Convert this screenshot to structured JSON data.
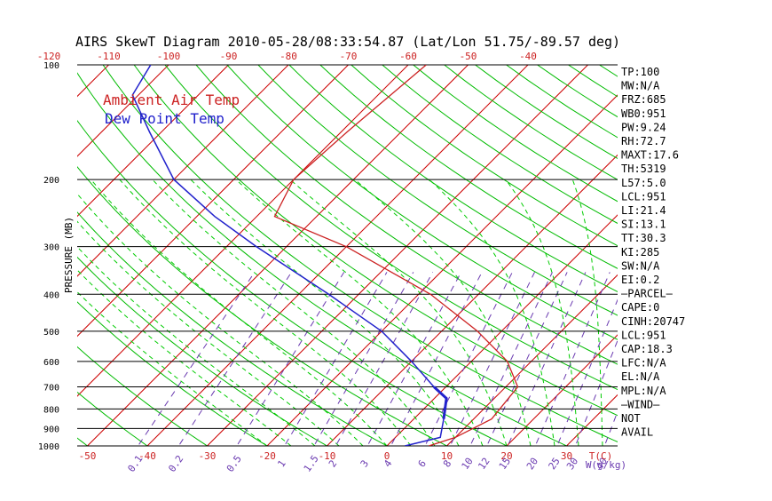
{
  "chart_data": {
    "type": "line",
    "title": "AIRS SkewT Diagram 2010-05-28/08:33:54.87 (Lat/Lon 51.75/-89.57 deg)",
    "ylabel": "PRESSURE (MB)",
    "y_scale": "log",
    "ylim": [
      1000,
      100
    ],
    "xlim_bottom": [
      -50,
      40
    ],
    "pressure_ticks": [
      100,
      200,
      300,
      400,
      500,
      600,
      700,
      800,
      900,
      1000
    ],
    "temp_ticks_top": [
      -120,
      -110,
      -100,
      -90,
      -80,
      -70,
      -60,
      -50,
      -40
    ],
    "temp_ticks_bottom": [
      -50,
      -40,
      -30,
      -20,
      -10,
      0,
      10,
      20,
      30
    ],
    "temp_unit_label": "T(C)",
    "mixing_ratio_ticks": [
      "0.1",
      "0.2",
      "0.5",
      "1",
      "1.5",
      "2",
      "3",
      "4",
      "6",
      "8",
      "10",
      "12",
      "15",
      "20",
      "25",
      "30",
      "40"
    ],
    "mixing_ratio_unit_label": "W(g/kg)",
    "series": [
      {
        "name": "Ambient Air Temp",
        "color": "#cc2222",
        "points": [
          {
            "p": 1000,
            "t": 7
          },
          {
            "p": 950,
            "t": 10
          },
          {
            "p": 850,
            "t": 13
          },
          {
            "p": 700,
            "t": 12
          },
          {
            "p": 600,
            "t": 6
          },
          {
            "p": 500,
            "t": -4
          },
          {
            "p": 400,
            "t": -18
          },
          {
            "p": 300,
            "t": -40
          },
          {
            "p": 250,
            "t": -57
          },
          {
            "p": 200,
            "t": -60
          },
          {
            "p": 150,
            "t": -59
          },
          {
            "p": 100,
            "t": -57
          }
        ]
      },
      {
        "name": "Dew Point Temp",
        "color": "#2222cc",
        "points": [
          {
            "p": 1000,
            "t": 3
          },
          {
            "p": 950,
            "t": 7.5
          },
          {
            "p": 850,
            "t": 5
          },
          {
            "p": 750,
            "t": 2
          },
          {
            "p": 700,
            "t": -2
          },
          {
            "p": 600,
            "t": -10
          },
          {
            "p": 500,
            "t": -20
          },
          {
            "p": 400,
            "t": -35
          },
          {
            "p": 300,
            "t": -55
          },
          {
            "p": 250,
            "t": -67
          },
          {
            "p": 200,
            "t": -80
          },
          {
            "p": 150,
            "t": -92
          },
          {
            "p": 120,
            "t": -101
          },
          {
            "p": 100,
            "t": -103
          }
        ]
      }
    ],
    "legend": [
      {
        "label": "Ambient Air Temp",
        "color": "#cc2222"
      },
      {
        "label": "Dew Point Temp",
        "color": "#2222cc"
      }
    ],
    "legend_placement": "top-left",
    "grid": true,
    "colors": {
      "isotherm": "#cc0000",
      "dry_adiabat": "#00bb00",
      "moist_adiabat": "#00cc00",
      "mixing_ratio": "#6a3ab0",
      "isobar": "#000000"
    }
  },
  "indices": [
    "TP:100",
    "MW:N/A",
    "FRZ:685",
    "WB0:951",
    "PW:9.24",
    "RH:72.7",
    "MAXT:17.6",
    "TH:5319",
    "L57:5.0",
    "LCL:951",
    "LI:21.4",
    "SI:13.1",
    "TT:30.3",
    "KI:285",
    "SW:N/A",
    "EI:0.2",
    "—PARCEL—",
    "CAPE:0",
    "CINH:20747",
    "LCL:951",
    "CAP:18.3",
    "LFC:N/A",
    "EL:N/A",
    "MPL:N/A",
    "—WIND—",
    "NOT",
    "AVAIL"
  ]
}
